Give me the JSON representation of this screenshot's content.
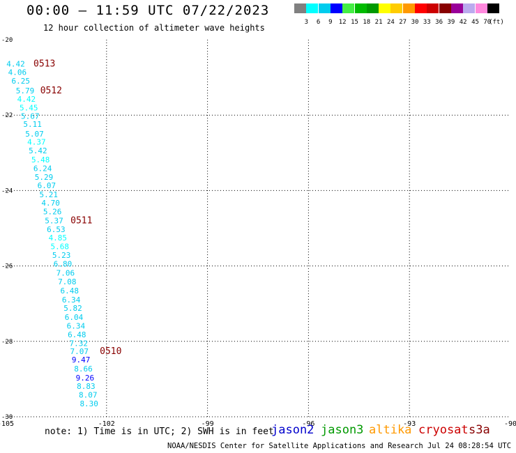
{
  "header": {
    "title": "00:00 – 11:59 UTC 07/22/2023",
    "subtitle": "12 hour collection of altimeter wave heights"
  },
  "footer": {
    "note": "note:  1) Time is in UTC;  2) SWH is in feet",
    "credit": "NOAA/NESDIS Center for Satellite Applications and Research    Jul 24 08:28:54 UTC 2023"
  },
  "satellites": [
    {
      "name": "jason2",
      "color": "#0000cc"
    },
    {
      "name": "jason3",
      "color": "#009900"
    },
    {
      "name": "altika",
      "color": "#ff9900"
    },
    {
      "name": "cryosat",
      "color": "#cc0000"
    },
    {
      "name": "s3a",
      "color": "#880000"
    }
  ],
  "colorbar": {
    "colors": [
      "#808080",
      "#00ffff",
      "#00ccee",
      "#0000ff",
      "#44ee44",
      "#00bb00",
      "#009900",
      "#ffff00",
      "#ffcc00",
      "#ff9900",
      "#ff0000",
      "#cc0000",
      "#880000",
      "#990099",
      "#bbaaee",
      "#ff88dd",
      "#000000"
    ],
    "labels": [
      "3",
      "6",
      "9",
      "12",
      "15",
      "18",
      "21",
      "24",
      "27",
      "30",
      "33",
      "36",
      "39",
      "42",
      "45",
      "70"
    ],
    "unit": "(ft)"
  },
  "chart_data": {
    "type": "scatter",
    "xlim": [
      -105,
      -90
    ],
    "ylim": [
      -30,
      -20
    ],
    "xticks": [
      -105,
      -102,
      -99,
      -96,
      -93,
      -90
    ],
    "yticks": [
      -20,
      -22,
      -24,
      -26,
      -28,
      -30
    ],
    "xtick_labels": [
      "-105",
      "-102",
      "-99",
      "-96",
      "-93",
      "-90"
    ],
    "ytick_labels": [
      "-20",
      "-22",
      "-24",
      "-26",
      "-28",
      "-30"
    ],
    "grid": true,
    "points": [
      {
        "label": "4.42",
        "x": -104.7,
        "y": -20.65,
        "color": "#00ccee"
      },
      {
        "label": "4.06",
        "x": -104.65,
        "y": -20.87,
        "color": "#00ccee"
      },
      {
        "label": "6.25",
        "x": -104.55,
        "y": -21.1,
        "color": "#00ccee"
      },
      {
        "label": "5.79",
        "x": -104.42,
        "y": -21.36,
        "color": "#00ccee"
      },
      {
        "label": "4.42",
        "x": -104.38,
        "y": -21.58,
        "color": "#00ffff"
      },
      {
        "label": "5.45",
        "x": -104.31,
        "y": -21.81,
        "color": "#00ffff"
      },
      {
        "label": "5.67",
        "x": -104.27,
        "y": -22.03,
        "color": "#00ccee"
      },
      {
        "label": "5.11",
        "x": -104.2,
        "y": -22.25,
        "color": "#00ccee"
      },
      {
        "label": "5.07",
        "x": -104.14,
        "y": -22.5,
        "color": "#00ccee"
      },
      {
        "label": "4.37",
        "x": -104.08,
        "y": -22.72,
        "color": "#00ffff"
      },
      {
        "label": "5.42",
        "x": -104.04,
        "y": -22.95,
        "color": "#00ccee"
      },
      {
        "label": "5.48",
        "x": -103.96,
        "y": -23.19,
        "color": "#00ffff"
      },
      {
        "label": "6.24",
        "x": -103.9,
        "y": -23.42,
        "color": "#00ccee"
      },
      {
        "label": "5.29",
        "x": -103.86,
        "y": -23.65,
        "color": "#00ccee"
      },
      {
        "label": "6.07",
        "x": -103.78,
        "y": -23.87,
        "color": "#00ccee"
      },
      {
        "label": "5.21",
        "x": -103.72,
        "y": -24.11,
        "color": "#00ccee"
      },
      {
        "label": "4.70",
        "x": -103.66,
        "y": -24.33,
        "color": "#00ccee"
      },
      {
        "label": "5.26",
        "x": -103.61,
        "y": -24.57,
        "color": "#00ccee"
      },
      {
        "label": "5.37",
        "x": -103.56,
        "y": -24.81,
        "color": "#00ccee"
      },
      {
        "label": "6.53",
        "x": -103.5,
        "y": -25.04,
        "color": "#00ccee"
      },
      {
        "label": "4.85",
        "x": -103.45,
        "y": -25.26,
        "color": "#00ffff"
      },
      {
        "label": "5.68",
        "x": -103.39,
        "y": -25.49,
        "color": "#00ffff"
      },
      {
        "label": "5.23",
        "x": -103.34,
        "y": -25.72,
        "color": "#00ccee"
      },
      {
        "label": "6.80",
        "x": -103.3,
        "y": -25.95,
        "color": "#00ccee"
      },
      {
        "label": "7.06",
        "x": -103.22,
        "y": -26.19,
        "color": "#00ccee"
      },
      {
        "label": "7.08",
        "x": -103.17,
        "y": -26.42,
        "color": "#00ccee"
      },
      {
        "label": "6.48",
        "x": -103.1,
        "y": -26.66,
        "color": "#00ccee"
      },
      {
        "label": "6.34",
        "x": -103.05,
        "y": -26.9,
        "color": "#00ccee"
      },
      {
        "label": "5.82",
        "x": -103.0,
        "y": -27.13,
        "color": "#00ccee"
      },
      {
        "label": "6.04",
        "x": -102.97,
        "y": -27.37,
        "color": "#00ccee"
      },
      {
        "label": "6.34",
        "x": -102.91,
        "y": -27.6,
        "color": "#00ccee"
      },
      {
        "label": "6.48",
        "x": -102.88,
        "y": -27.83,
        "color": "#00ccee"
      },
      {
        "label": "7.32",
        "x": -102.83,
        "y": -28.06,
        "color": "#00ccee"
      },
      {
        "label": "7.07",
        "x": -102.81,
        "y": -28.27,
        "color": "#00ccee"
      },
      {
        "label": "9.47",
        "x": -102.76,
        "y": -28.49,
        "color": "#0000ff"
      },
      {
        "label": "8.66",
        "x": -102.69,
        "y": -28.73,
        "color": "#00ccee"
      },
      {
        "label": "9.26",
        "x": -102.64,
        "y": -28.97,
        "color": "#0000ff"
      },
      {
        "label": "8.83",
        "x": -102.61,
        "y": -29.2,
        "color": "#00ccee"
      },
      {
        "label": "8.07",
        "x": -102.55,
        "y": -29.43,
        "color": "#00ccee"
      },
      {
        "label": "8.30",
        "x": -102.52,
        "y": -29.66,
        "color": "#00ccee"
      }
    ],
    "time_labels": [
      {
        "label": "0513",
        "x": -104.17,
        "y": -20.65,
        "color": "#880000"
      },
      {
        "label": "0512",
        "x": -103.97,
        "y": -21.36,
        "color": "#880000"
      },
      {
        "label": "0511",
        "x": -103.07,
        "y": -24.81,
        "color": "#880000"
      },
      {
        "label": "0510",
        "x": -102.2,
        "y": -28.27,
        "color": "#880000"
      }
    ]
  }
}
